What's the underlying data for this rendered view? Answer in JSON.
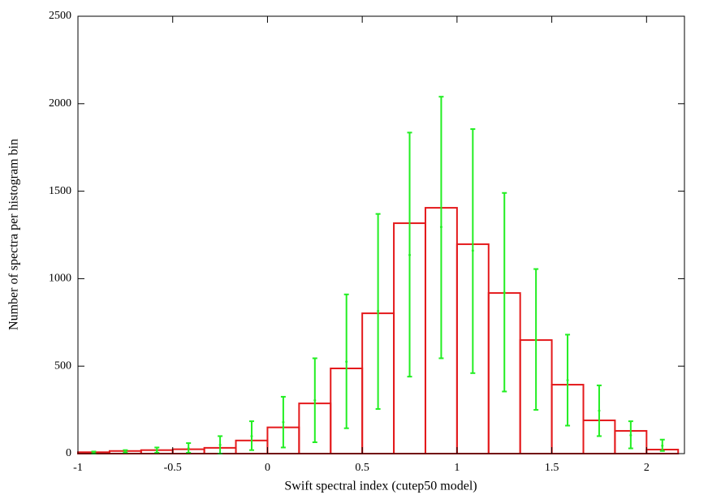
{
  "chart_data": {
    "type": "histogram",
    "xlabel": "Swift spectral index (cutep50 model)",
    "ylabel": "Number of spectra per histogram bin",
    "bins": [
      -1,
      -0.8333,
      -0.6667,
      -0.5,
      -0.3333,
      -0.1667,
      0,
      0.1667,
      0.3333,
      0.5,
      0.6667,
      0.8333,
      1,
      1.1667,
      1.3333,
      1.5,
      1.6667,
      1.8333,
      2,
      2.1667
    ],
    "counts": [
      8,
      15,
      20,
      25,
      33,
      75,
      150,
      287,
      487,
      802,
      1317,
      1405,
      1197,
      918,
      649,
      394,
      190,
      130,
      23
    ],
    "color": "#e41a1c",
    "errors": {
      "color": "#22ee22",
      "values": [
        5,
        10,
        18,
        30,
        50,
        100,
        180,
        305,
        525,
        815,
        1135,
        1295,
        1160,
        920,
        650,
        420,
        245,
        105,
        45
      ],
      "low": [
        0,
        5,
        5,
        5,
        0,
        20,
        35,
        65,
        145,
        255,
        440,
        545,
        460,
        355,
        250,
        160,
        100,
        30,
        15
      ],
      "high": [
        12,
        20,
        35,
        60,
        100,
        185,
        325,
        545,
        910,
        1370,
        1835,
        2040,
        1855,
        1490,
        1055,
        680,
        390,
        185,
        80
      ]
    },
    "xlim": [
      -1,
      2.2
    ],
    "ylim": [
      0,
      2500
    ],
    "xticks": [
      -1,
      -0.5,
      0,
      0.5,
      1,
      1.5,
      2
    ],
    "yticks": [
      0,
      500,
      1000,
      1500,
      2000,
      2500
    ],
    "grid": false
  }
}
